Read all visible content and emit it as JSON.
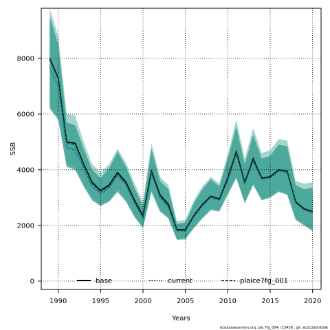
{
  "chart_data": {
    "type": "line",
    "title": "",
    "xlabel": "Years",
    "ylabel": "SSB",
    "xlim": [
      1988,
      2021
    ],
    "ylim": [
      -300,
      9800
    ],
    "x_ticks": [
      1990,
      1995,
      2000,
      2005,
      2010,
      2015,
      2020
    ],
    "y_ticks": [
      0,
      2000,
      4000,
      6000,
      8000
    ],
    "grid": true,
    "legend_placement": "bottom",
    "x": [
      1989,
      1990,
      1991,
      1992,
      1993,
      1994,
      1995,
      1996,
      1997,
      1998,
      1999,
      2000,
      2001,
      2002,
      2003,
      2004,
      2005,
      2006,
      2007,
      2008,
      2009,
      2010,
      2011,
      2012,
      2013,
      2014,
      2015,
      2016,
      2017,
      2018,
      2019,
      2020
    ],
    "series": [
      {
        "name": "base",
        "color": "#000000",
        "style": "solid",
        "values": [
          8000,
          7300,
          5000,
          4950,
          4200,
          3550,
          3250,
          3450,
          3900,
          3550,
          2900,
          2350,
          3950,
          3100,
          2750,
          1850,
          1850,
          2350,
          2750,
          3050,
          2950,
          3700,
          4650,
          3550,
          4400,
          3700,
          3750,
          4000,
          3950,
          2850,
          2600,
          2500
        ],
        "band_low": [
          6300,
          5900,
          4200,
          4100,
          3500,
          3000,
          2750,
          2900,
          3300,
          2950,
          2350,
          1950,
          3300,
          2550,
          2300,
          1500,
          1550,
          1950,
          2300,
          2600,
          2550,
          3200,
          3750,
          2850,
          3500,
          2950,
          3050,
          3250,
          3150,
          2250,
          2050,
          1850
        ],
        "band_high": [
          9800,
          8800,
          6000,
          5950,
          5000,
          4200,
          3900,
          4200,
          4750,
          4250,
          3500,
          2850,
          4950,
          3750,
          3450,
          2150,
          2200,
          2900,
          3400,
          3750,
          3500,
          4550,
          5800,
          4400,
          5500,
          4600,
          4700,
          5100,
          5050,
          3600,
          3500,
          3550
        ],
        "band_color": "#5fb3a3"
      },
      {
        "name": "current",
        "color": "#1f4f8f",
        "style": "dotted",
        "values": [
          7700,
          7000,
          4800,
          4700,
          4050,
          3400,
          3150,
          3350,
          3800,
          3450,
          2800,
          2250,
          3850,
          3000,
          2650,
          1800,
          1800,
          2300,
          2700,
          3000,
          2900,
          3600,
          4550,
          3500,
          4300,
          3650,
          3700,
          3950,
          3900,
          2800,
          2550,
          2450
        ]
      },
      {
        "name": "plaice7fg_001",
        "color": "#0d5c52",
        "style": "dashed",
        "values": [
          7950,
          7250,
          4950,
          4900,
          4150,
          3500,
          3200,
          3400,
          3850,
          3500,
          2850,
          2300,
          3900,
          3050,
          2700,
          1820,
          1820,
          2330,
          2720,
          3030,
          2930,
          3650,
          4600,
          3520,
          4350,
          3680,
          3720,
          3980,
          3930,
          2830,
          2580,
          2480
        ],
        "band_low": [
          6200,
          5800,
          4100,
          4000,
          3400,
          2900,
          2700,
          2850,
          3200,
          2850,
          2300,
          1900,
          3200,
          2500,
          2250,
          1480,
          1500,
          1900,
          2250,
          2550,
          2500,
          3100,
          3700,
          2800,
          3450,
          2900,
          3000,
          3200,
          3100,
          2200,
          2000,
          1800
        ],
        "band_high": [
          9500,
          8500,
          5700,
          5600,
          4750,
          4000,
          3700,
          4050,
          4650,
          4100,
          3350,
          2700,
          4750,
          3600,
          3300,
          2050,
          2100,
          2800,
          3300,
          3650,
          3400,
          4400,
          5550,
          4200,
          5250,
          4400,
          4500,
          4900,
          4850,
          3450,
          3300,
          3350
        ],
        "band_color": "#2e9a8c"
      }
    ]
  },
  "footer": {
    "text": "stockassessment.org, ple.7fg_004, r15438 , git: ec2c2a0c6dde"
  }
}
